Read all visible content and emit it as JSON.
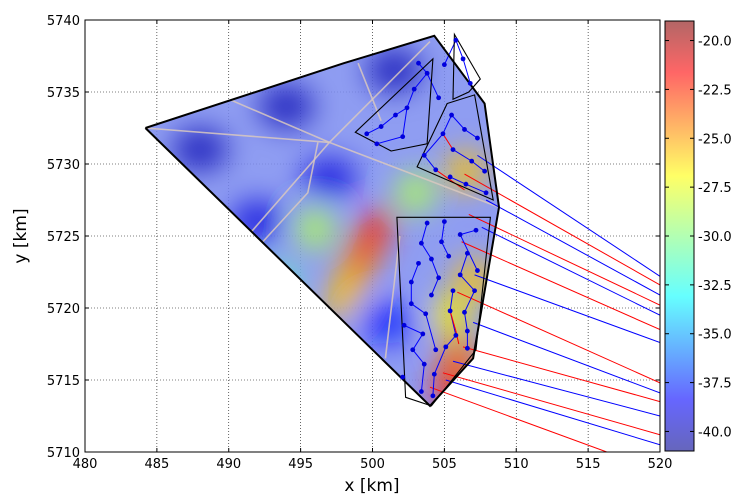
{
  "chart_data": {
    "type": "heatmap",
    "xlabel": "x [km]",
    "ylabel": "y [km]",
    "xlim": [
      480,
      520
    ],
    "ylim": [
      5710,
      5740
    ],
    "xticks": [
      480,
      485,
      490,
      495,
      500,
      505,
      510,
      515,
      520
    ],
    "yticks": [
      5710,
      5715,
      5720,
      5725,
      5730,
      5735,
      5740
    ],
    "xtick_labels": [
      "480",
      "485",
      "490",
      "495",
      "500",
      "505",
      "510",
      "515",
      "520"
    ],
    "ytick_labels": [
      "5710",
      "5715",
      "5720",
      "5725",
      "5730",
      "5735",
      "5740"
    ],
    "grid": true,
    "colorbar": {
      "range": [
        -41,
        -19
      ],
      "ticks": [
        -20.0,
        -22.5,
        -25.0,
        -27.5,
        -30.0,
        -32.5,
        -35.0,
        -37.5,
        -40.0
      ],
      "tick_labels": [
        "-20.0",
        "-22.5",
        "-25.0",
        "-27.5",
        "-30.0",
        "-32.5",
        "-35.0",
        "-37.5",
        "-40.0"
      ],
      "colormap": "jet",
      "position": "right"
    },
    "colors": {
      "boundary": "#000000",
      "cable_blue": "#0000ff",
      "cable_red": "#ff0000",
      "turbine": "#0000dd"
    },
    "site_boundary": [
      [
        484.2,
        5732.5
      ],
      [
        498,
        5737
      ],
      [
        504.3,
        5738.9
      ],
      [
        507.8,
        5734.2
      ],
      [
        508.8,
        5727
      ],
      [
        507,
        5716.5
      ],
      [
        504,
        5713.2
      ],
      [
        484.2,
        5732.5
      ]
    ],
    "sub_areas": [
      [
        [
          502.3,
          5713.8
        ],
        [
          501.7,
          5726.3
        ],
        [
          508.2,
          5726.3
        ],
        [
          507.2,
          5717.1
        ],
        [
          504.1,
          5713.2
        ]
      ],
      [
        [
          501.3,
          5730.9
        ],
        [
          503.8,
          5731.4
        ],
        [
          504.2,
          5737.3
        ],
        [
          498.8,
          5732.2
        ]
      ],
      [
        [
          505.2,
          5734.2
        ],
        [
          507.1,
          5734.8
        ],
        [
          508.4,
          5727.5
        ],
        [
          503.1,
          5729.8
        ]
      ],
      [
        [
          505.7,
          5739
        ],
        [
          505.6,
          5734.5
        ],
        [
          506.7,
          5735
        ],
        [
          507.5,
          5735.9
        ]
      ]
    ],
    "hotspots": [
      {
        "x": 500,
        "y": 5725,
        "value": -22
      },
      {
        "x": 499,
        "y": 5723,
        "value": -24
      },
      {
        "x": 498,
        "y": 5721,
        "value": -26
      },
      {
        "x": 505.5,
        "y": 5714.5,
        "value": -22
      },
      {
        "x": 506,
        "y": 5716.5,
        "value": -24
      },
      {
        "x": 505.5,
        "y": 5719.5,
        "value": -27
      },
      {
        "x": 507,
        "y": 5722,
        "value": -26
      },
      {
        "x": 506.5,
        "y": 5729.5,
        "value": -26
      },
      {
        "x": 503,
        "y": 5728,
        "value": -29
      },
      {
        "x": 496,
        "y": 5725.5,
        "value": -29
      },
      {
        "x": 493.5,
        "y": 5721.5,
        "value": -31
      }
    ],
    "coldspots": [
      {
        "x": 488,
        "y": 5731,
        "value": -40
      },
      {
        "x": 494,
        "y": 5734,
        "value": -40
      },
      {
        "x": 501.5,
        "y": 5736.5,
        "value": -40
      },
      {
        "x": 492,
        "y": 5726,
        "value": -39
      },
      {
        "x": 497,
        "y": 5729,
        "value": -39
      },
      {
        "x": 501,
        "y": 5719,
        "value": -38
      },
      {
        "x": 496,
        "y": 5716.5,
        "value": -38
      }
    ],
    "turbines": [
      [
        503.4,
        5714.2
      ],
      [
        504.2,
        5713.9
      ],
      [
        504.3,
        5715.4
      ],
      [
        502.1,
        5715.2
      ],
      [
        503.6,
        5716.1
      ],
      [
        502.8,
        5717.1
      ],
      [
        504.4,
        5717.1
      ],
      [
        505.1,
        5717.3
      ],
      [
        506.6,
        5717.2
      ],
      [
        503.5,
        5718.2
      ],
      [
        505.8,
        5718.1
      ],
      [
        506.6,
        5718.4
      ],
      [
        502.2,
        5718.8
      ],
      [
        503.7,
        5719.6
      ],
      [
        505.4,
        5719.8
      ],
      [
        506.4,
        5719.7
      ],
      [
        502.7,
        5720.3
      ],
      [
        504.1,
        5720.9
      ],
      [
        505.6,
        5721.2
      ],
      [
        507.1,
        5721.2
      ],
      [
        502.7,
        5721.8
      ],
      [
        504.6,
        5722.1
      ],
      [
        506.1,
        5722.3
      ],
      [
        507.3,
        5722.6
      ],
      [
        503.2,
        5723.1
      ],
      [
        504.1,
        5723.4
      ],
      [
        505.3,
        5723.6
      ],
      [
        506.6,
        5723.8
      ],
      [
        503.4,
        5724.5
      ],
      [
        504.8,
        5724.6
      ],
      [
        506.1,
        5725.1
      ],
      [
        507.2,
        5725.4
      ],
      [
        503.8,
        5725.9
      ],
      [
        505.0,
        5726.0
      ],
      [
        499.6,
        5732.1
      ],
      [
        500.6,
        5732.6
      ],
      [
        501.6,
        5733.4
      ],
      [
        502.4,
        5733.9
      ],
      [
        500.3,
        5731.4
      ],
      [
        502.9,
        5735.2
      ],
      [
        503.8,
        5736.3
      ],
      [
        503.2,
        5737.0
      ],
      [
        504.6,
        5734.6
      ],
      [
        502.1,
        5731.9
      ],
      [
        505.0,
        5736.9
      ],
      [
        505.8,
        5738.6
      ],
      [
        506.3,
        5737.3
      ],
      [
        506.8,
        5735.6
      ],
      [
        505.5,
        5733.4
      ],
      [
        506.4,
        5732.4
      ],
      [
        507.3,
        5731.8
      ],
      [
        505.6,
        5731.0
      ],
      [
        506.9,
        5730.2
      ],
      [
        507.8,
        5729.5
      ],
      [
        505.4,
        5729.1
      ],
      [
        506.5,
        5728.6
      ],
      [
        507.9,
        5728.0
      ],
      [
        504.4,
        5729.6
      ],
      [
        503.6,
        5730.6
      ],
      [
        504.9,
        5732.1
      ]
    ],
    "export_cables": [
      {
        "from": [
          507.3,
          5730.6
        ],
        "to": [
          520,
          5722.2
        ],
        "color": "blue"
      },
      {
        "from": [
          506.4,
          5729.3
        ],
        "to": [
          520,
          5721.6
        ],
        "color": "red"
      },
      {
        "from": [
          507.9,
          5727.5
        ],
        "to": [
          520,
          5720.9
        ],
        "color": "blue"
      },
      {
        "from": [
          506.7,
          5726.5
        ],
        "to": [
          520,
          5720.2
        ],
        "color": "red"
      },
      {
        "from": [
          507.6,
          5725.6
        ],
        "to": [
          520,
          5719.5
        ],
        "color": "blue"
      },
      {
        "from": [
          506.2,
          5724.6
        ],
        "to": [
          520,
          5718.5
        ],
        "color": "red"
      },
      {
        "from": [
          507.1,
          5722.3
        ],
        "to": [
          520,
          5717.6
        ],
        "color": "blue"
      },
      {
        "from": [
          505.9,
          5721.1
        ],
        "to": [
          520,
          5714.8
        ],
        "color": "red"
      },
      {
        "from": [
          507.0,
          5719.0
        ],
        "to": [
          520,
          5714.1
        ],
        "color": "blue"
      },
      {
        "from": [
          506.3,
          5717.3
        ],
        "to": [
          520,
          5713.5
        ],
        "color": "red"
      },
      {
        "from": [
          505.6,
          5716.3
        ],
        "to": [
          520,
          5712.5
        ],
        "color": "blue"
      },
      {
        "from": [
          504.9,
          5715.5
        ],
        "to": [
          520,
          5711.2
        ],
        "color": "red"
      },
      {
        "from": [
          504.0,
          5714.5
        ],
        "to": [
          516.3,
          5710
        ],
        "color": "red"
      },
      {
        "from": [
          505.1,
          5715.0
        ],
        "to": [
          520,
          5710.5
        ],
        "color": "blue"
      }
    ],
    "infield_cables": [
      {
        "path": [
          [
            503.4,
            5714.2
          ],
          [
            503.6,
            5716.1
          ],
          [
            502.8,
            5717.1
          ],
          [
            503.5,
            5718.2
          ],
          [
            502.2,
            5718.8
          ]
        ],
        "color": "blue"
      },
      {
        "path": [
          [
            504.2,
            5713.9
          ],
          [
            504.3,
            5715.4
          ],
          [
            505.1,
            5717.3
          ],
          [
            505.8,
            5718.1
          ],
          [
            505.4,
            5719.8
          ],
          [
            505.6,
            5721.2
          ]
        ],
        "color": "blue"
      },
      {
        "path": [
          [
            504.4,
            5717.1
          ],
          [
            503.7,
            5719.6
          ],
          [
            502.7,
            5720.3
          ],
          [
            502.7,
            5721.8
          ],
          [
            503.2,
            5723.1
          ]
        ],
        "color": "blue"
      },
      {
        "path": [
          [
            506.6,
            5717.2
          ],
          [
            506.6,
            5718.4
          ],
          [
            506.4,
            5719.7
          ],
          [
            507.1,
            5721.2
          ],
          [
            506.1,
            5722.3
          ],
          [
            506.6,
            5723.8
          ]
        ],
        "color": "blue"
      },
      {
        "path": [
          [
            504.1,
            5720.9
          ],
          [
            504.6,
            5722.1
          ],
          [
            504.1,
            5723.4
          ],
          [
            503.4,
            5724.5
          ],
          [
            503.8,
            5725.9
          ]
        ],
        "color": "blue"
      },
      {
        "path": [
          [
            505.3,
            5723.6
          ],
          [
            504.8,
            5724.6
          ],
          [
            505.0,
            5726.0
          ]
        ],
        "color": "blue"
      },
      {
        "path": [
          [
            507.3,
            5722.6
          ],
          [
            506.1,
            5725.1
          ],
          [
            507.2,
            5725.4
          ]
        ],
        "color": "blue"
      },
      {
        "path": [
          [
            505.4,
            5719.8
          ],
          [
            505.8,
            5718.4
          ],
          [
            506.0,
            5717.5
          ]
        ],
        "color": "red"
      },
      {
        "path": [
          [
            499.6,
            5732.1
          ],
          [
            500.6,
            5732.6
          ],
          [
            501.6,
            5733.4
          ],
          [
            502.4,
            5733.9
          ]
        ],
        "color": "blue"
      },
      {
        "path": [
          [
            500.3,
            5731.4
          ],
          [
            502.1,
            5731.9
          ],
          [
            502.4,
            5733.9
          ],
          [
            502.9,
            5735.2
          ],
          [
            503.8,
            5736.3
          ]
        ],
        "color": "blue"
      },
      {
        "path": [
          [
            503.2,
            5737.0
          ],
          [
            503.8,
            5736.3
          ],
          [
            504.6,
            5734.6
          ]
        ],
        "color": "blue"
      },
      {
        "path": [
          [
            505.0,
            5736.9
          ],
          [
            505.8,
            5738.6
          ],
          [
            506.3,
            5737.3
          ],
          [
            506.8,
            5735.6
          ]
        ],
        "color": "blue"
      },
      {
        "path": [
          [
            505.5,
            5733.4
          ],
          [
            506.4,
            5732.4
          ],
          [
            507.3,
            5731.8
          ]
        ],
        "color": "blue"
      },
      {
        "path": [
          [
            505.6,
            5731.0
          ],
          [
            506.9,
            5730.2
          ],
          [
            507.8,
            5729.5
          ]
        ],
        "color": "blue"
      },
      {
        "path": [
          [
            505.4,
            5729.1
          ],
          [
            506.5,
            5728.6
          ],
          [
            507.9,
            5728.0
          ]
        ],
        "color": "blue"
      },
      {
        "path": [
          [
            504.4,
            5729.6
          ],
          [
            503.6,
            5730.6
          ],
          [
            504.9,
            5732.1
          ],
          [
            505.5,
            5733.4
          ]
        ],
        "color": "blue"
      },
      {
        "path": [
          [
            504.9,
            5732.1
          ],
          [
            505.6,
            5731.0
          ]
        ],
        "color": "red"
      },
      {
        "path": [
          [
            504.4,
            5729.6
          ],
          [
            506.4,
            5728.2
          ]
        ],
        "color": "red"
      }
    ],
    "reference_lines": [
      [
        [
          484.2,
          5732.5
        ],
        [
          497,
          5731.5
        ],
        [
          508.8,
          5727
        ]
      ],
      [
        [
          490,
          5734.5
        ],
        [
          497,
          5731.5
        ]
      ],
      [
        [
          497,
          5731.5
        ],
        [
          504,
          5738.5
        ]
      ],
      [
        [
          497,
          5731.5
        ],
        [
          490,
          5723.5
        ]
      ],
      [
        [
          500.6,
          5733.0
        ],
        [
          499,
          5737
        ]
      ],
      [
        [
          501.9,
          5725
        ],
        [
          500.9,
          5716.5
        ]
      ],
      [
        [
          496.2,
          5731.5
        ],
        [
          495.5,
          5728
        ],
        [
          492,
          5724.2
        ]
      ]
    ]
  }
}
